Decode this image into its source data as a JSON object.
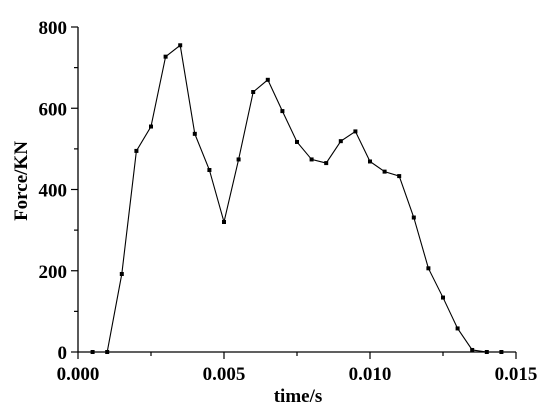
{
  "chart_data": {
    "type": "line",
    "title": "",
    "xlabel": "time/s",
    "ylabel": "Force/KN",
    "xlim": [
      0,
      0.015
    ],
    "ylim": [
      0,
      800
    ],
    "x_ticks": [
      0.0,
      0.005,
      0.01,
      0.015
    ],
    "x_tick_labels": [
      "0.000",
      "0.005",
      "0.010",
      "0.015"
    ],
    "y_ticks": [
      0,
      200,
      400,
      600,
      800
    ],
    "y_tick_labels": [
      "0",
      "200",
      "400",
      "600",
      "800"
    ],
    "grid": false,
    "legend": "none",
    "series": [
      {
        "color": "#000000",
        "marker": "square",
        "x": [
          0.0005,
          0.001,
          0.0015,
          0.002,
          0.0025,
          0.003,
          0.0035,
          0.004,
          0.0045,
          0.005,
          0.0055,
          0.006,
          0.0065,
          0.007,
          0.0075,
          0.008,
          0.0085,
          0.009,
          0.0095,
          0.01,
          0.0105,
          0.011,
          0.0115,
          0.012,
          0.0125,
          0.013,
          0.0135,
          0.014,
          0.0145
        ],
        "values": [
          0,
          0,
          192,
          495,
          555,
          727,
          755,
          537,
          448,
          320,
          474,
          640,
          670,
          593,
          517,
          474,
          465,
          519,
          543,
          469,
          444,
          433,
          331,
          206,
          134,
          58,
          5,
          0,
          0
        ]
      }
    ]
  }
}
